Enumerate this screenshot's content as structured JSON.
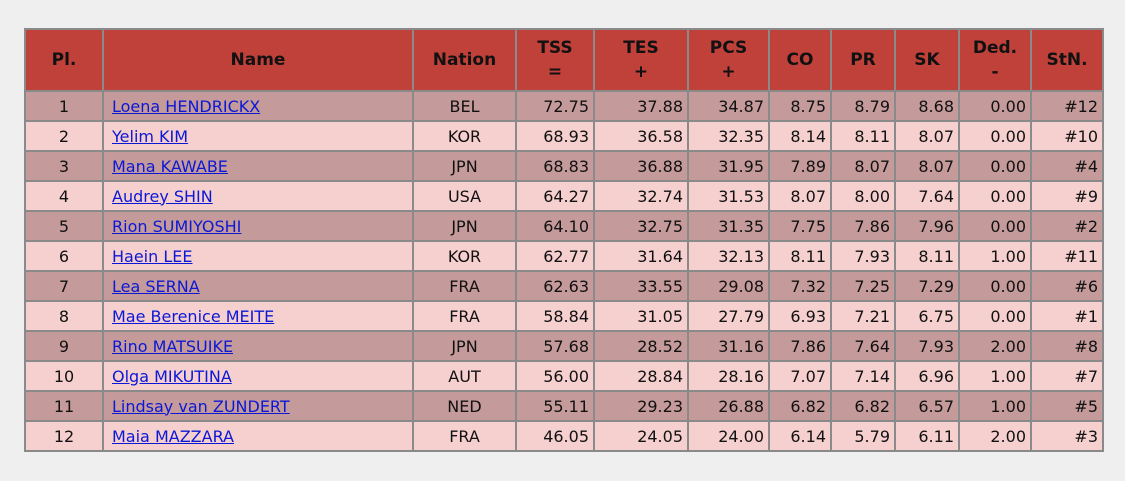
{
  "headers": {
    "pl": "Pl.",
    "name": "Name",
    "nation": "Nation",
    "tss": "TSS",
    "tss_sub": "=",
    "tes": "TES",
    "tes_sub": "+",
    "pcs": "PCS",
    "pcs_sub": "+",
    "co": "CO",
    "pr": "PR",
    "sk": "SK",
    "ded": "Ded.",
    "ded_sub": "-",
    "stn": "StN."
  },
  "rows": [
    {
      "pl": "1",
      "name": "Loena HENDRICKX",
      "nation": "BEL",
      "tss": "72.75",
      "tes": "37.88",
      "pcs": "34.87",
      "co": "8.75",
      "pr": "8.79",
      "sk": "8.68",
      "ded": "0.00",
      "stn": "#12"
    },
    {
      "pl": "2",
      "name": "Yelim KIM",
      "nation": "KOR",
      "tss": "68.93",
      "tes": "36.58",
      "pcs": "32.35",
      "co": "8.14",
      "pr": "8.11",
      "sk": "8.07",
      "ded": "0.00",
      "stn": "#10"
    },
    {
      "pl": "3",
      "name": "Mana KAWABE",
      "nation": "JPN",
      "tss": "68.83",
      "tes": "36.88",
      "pcs": "31.95",
      "co": "7.89",
      "pr": "8.07",
      "sk": "8.07",
      "ded": "0.00",
      "stn": "#4"
    },
    {
      "pl": "4",
      "name": "Audrey SHIN",
      "nation": "USA",
      "tss": "64.27",
      "tes": "32.74",
      "pcs": "31.53",
      "co": "8.07",
      "pr": "8.00",
      "sk": "7.64",
      "ded": "0.00",
      "stn": "#9"
    },
    {
      "pl": "5",
      "name": "Rion SUMIYOSHI",
      "nation": "JPN",
      "tss": "64.10",
      "tes": "32.75",
      "pcs": "31.35",
      "co": "7.75",
      "pr": "7.86",
      "sk": "7.96",
      "ded": "0.00",
      "stn": "#2"
    },
    {
      "pl": "6",
      "name": "Haein LEE",
      "nation": "KOR",
      "tss": "62.77",
      "tes": "31.64",
      "pcs": "32.13",
      "co": "8.11",
      "pr": "7.93",
      "sk": "8.11",
      "ded": "1.00",
      "stn": "#11"
    },
    {
      "pl": "7",
      "name": "Lea SERNA",
      "nation": "FRA",
      "tss": "62.63",
      "tes": "33.55",
      "pcs": "29.08",
      "co": "7.32",
      "pr": "7.25",
      "sk": "7.29",
      "ded": "0.00",
      "stn": "#6"
    },
    {
      "pl": "8",
      "name": "Mae Berenice MEITE",
      "nation": "FRA",
      "tss": "58.84",
      "tes": "31.05",
      "pcs": "27.79",
      "co": "6.93",
      "pr": "7.21",
      "sk": "6.75",
      "ded": "0.00",
      "stn": "#1"
    },
    {
      "pl": "9",
      "name": "Rino MATSUIKE",
      "nation": "JPN",
      "tss": "57.68",
      "tes": "28.52",
      "pcs": "31.16",
      "co": "7.86",
      "pr": "7.64",
      "sk": "7.93",
      "ded": "2.00",
      "stn": "#8"
    },
    {
      "pl": "10",
      "name": "Olga MIKUTINA",
      "nation": "AUT",
      "tss": "56.00",
      "tes": "28.84",
      "pcs": "28.16",
      "co": "7.07",
      "pr": "7.14",
      "sk": "6.96",
      "ded": "1.00",
      "stn": "#7"
    },
    {
      "pl": "11",
      "name": "Lindsay van ZUNDERT",
      "nation": "NED",
      "tss": "55.11",
      "tes": "29.23",
      "pcs": "26.88",
      "co": "6.82",
      "pr": "6.82",
      "sk": "6.57",
      "ded": "1.00",
      "stn": "#5"
    },
    {
      "pl": "12",
      "name": "Maia MAZZARA",
      "nation": "FRA",
      "tss": "46.05",
      "tes": "24.05",
      "pcs": "24.00",
      "co": "6.14",
      "pr": "5.79",
      "sk": "6.11",
      "ded": "2.00",
      "stn": "#3"
    }
  ],
  "colors": {
    "header_bg": "#c0413a",
    "row_odd_bg": "#c59a9a",
    "row_even_bg": "#f6cfcf",
    "link": "#0b18d6",
    "page_bg": "#efefef"
  }
}
